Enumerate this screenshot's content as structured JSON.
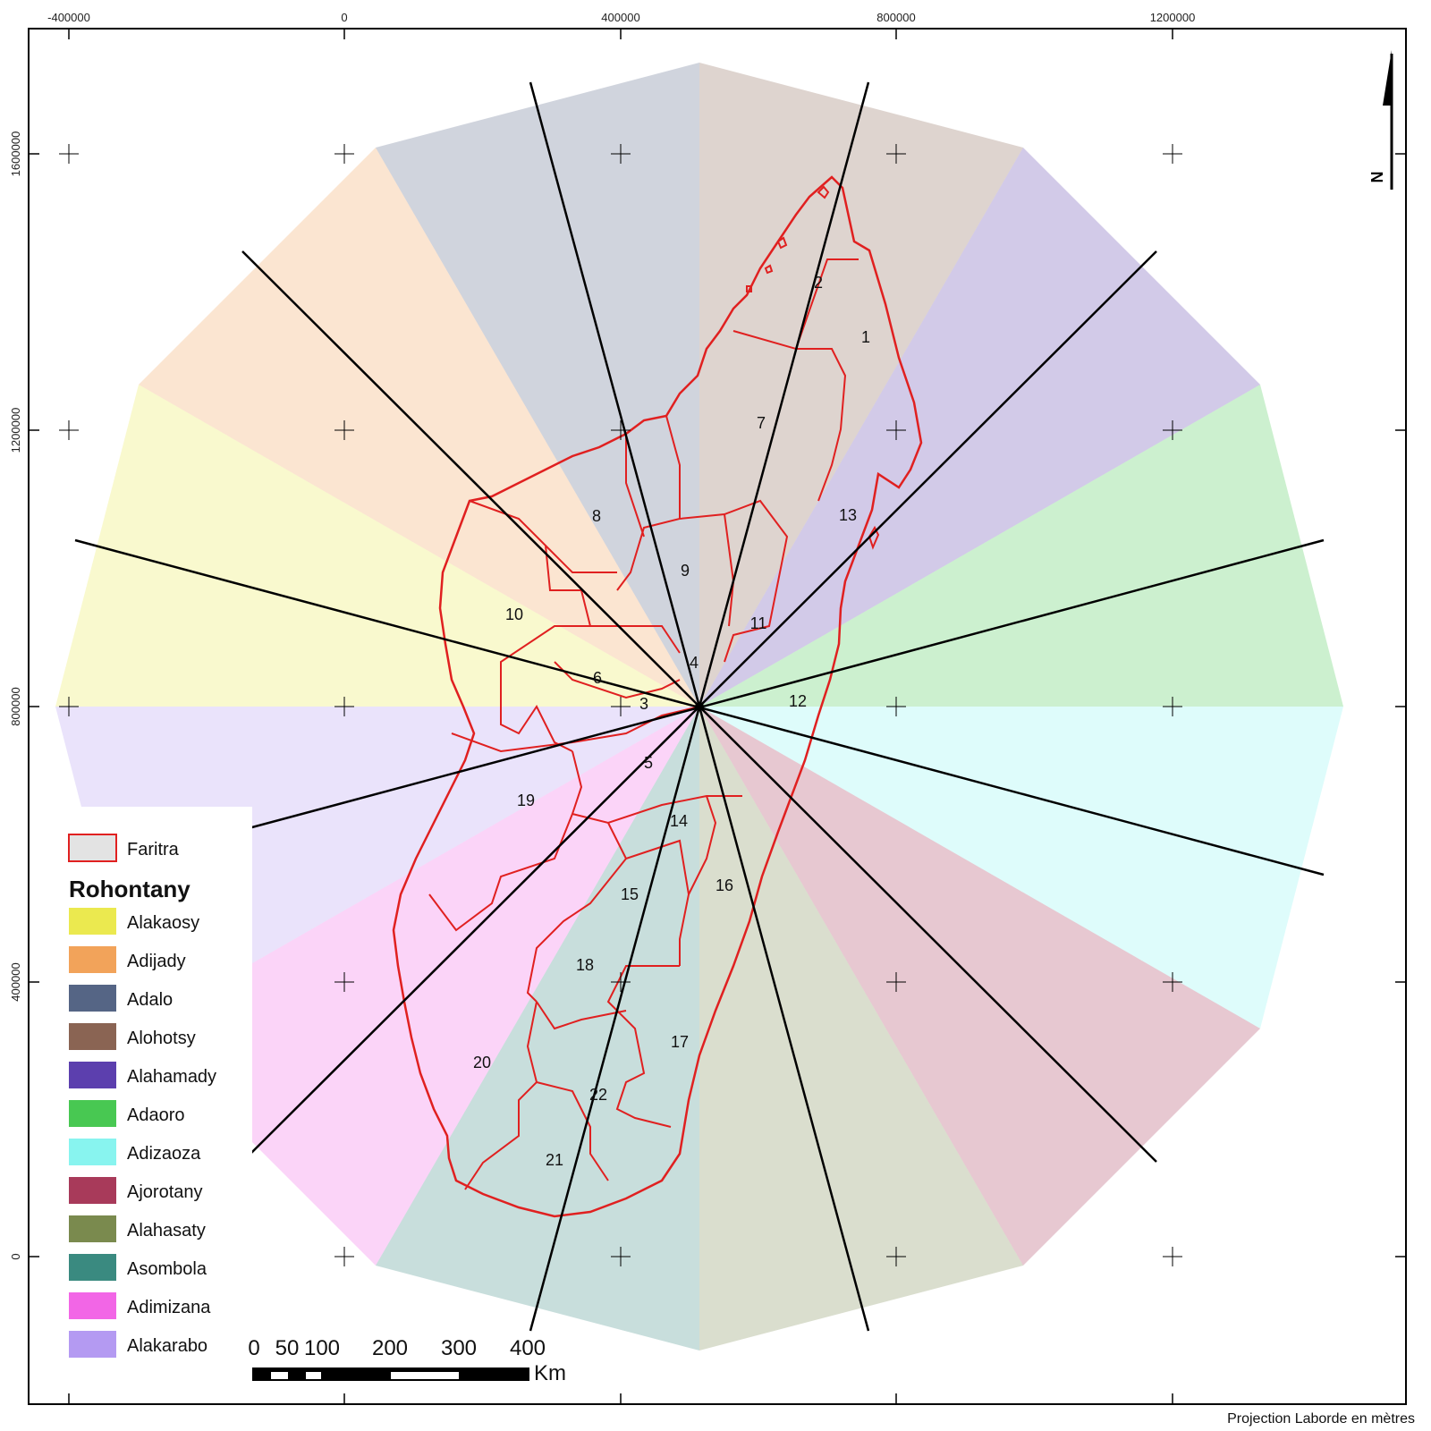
{
  "map": {
    "x_ticks": [
      "-400000",
      "0",
      "400000",
      "800000",
      "1200000"
    ],
    "y_ticks": [
      "1600000",
      "1200000",
      "800000",
      "400000",
      "0"
    ],
    "north_label": "N",
    "projection_note": "Projection Laborde en mètres"
  },
  "sectors": [
    {
      "name": "Alakaosy",
      "color": "#ebe94f"
    },
    {
      "name": "Adijady",
      "color": "#f2a35a"
    },
    {
      "name": "Adalo",
      "color": "#556585"
    },
    {
      "name": "Alohotsy",
      "color": "#8a6453"
    },
    {
      "name": "Alahamady",
      "color": "#5c3fae"
    },
    {
      "name": "Adaoro",
      "color": "#48c852"
    },
    {
      "name": "Adizaoza",
      "color": "#88f4ef"
    },
    {
      "name": "Ajorotany",
      "color": "#a83a5a"
    },
    {
      "name": "Alahasaty",
      "color": "#7a8a4e"
    },
    {
      "name": "Asombola",
      "color": "#3a8a80"
    },
    {
      "name": "Adimizana",
      "color": "#f266e6"
    },
    {
      "name": "Alakarabo",
      "color": "#b49af2"
    }
  ],
  "regions": [
    "1",
    "2",
    "3",
    "4",
    "5",
    "6",
    "7",
    "8",
    "9",
    "10",
    "11",
    "12",
    "13",
    "14",
    "15",
    "16",
    "17",
    "18",
    "19",
    "20",
    "21",
    "22"
  ],
  "legend": {
    "boundary_label": "Faritra",
    "title": "Rohontany"
  },
  "scale_bar": {
    "labels": [
      "0",
      "50",
      "100",
      "200",
      "300",
      "400"
    ],
    "unit": "Km"
  }
}
